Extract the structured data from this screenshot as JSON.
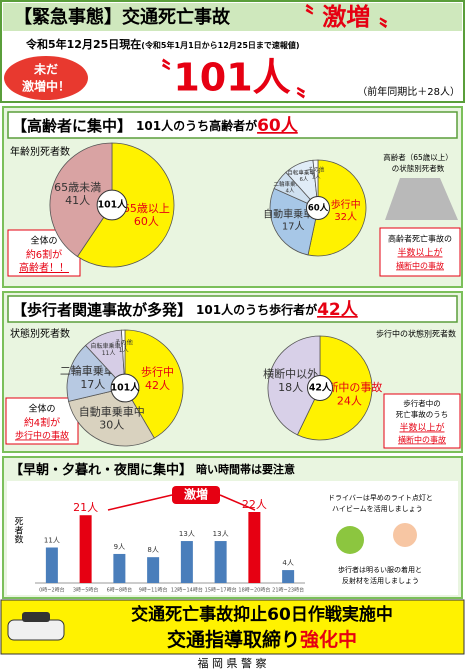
{
  "header": {
    "title": "【緊急事態】交通死亡事故",
    "title_emphasis": "〝 激増 〟",
    "date": "令和5年12月25日現在",
    "date_note": "(令和5年1月1日から12月25日まで速報値)",
    "badge": [
      "未だ",
      "激増中！"
    ],
    "quote_open": "〝",
    "total": "101人",
    "quote_close": "〟",
    "comparison": "（前年同期比＋28人）"
  },
  "section1": {
    "title": "【高齢者に集中】",
    "lead": "101人のうち高齢者が",
    "lead_number": "60人",
    "chart_label": "年齢別死者数",
    "pie": {
      "type": "pie",
      "center": "101人",
      "categories": [
        "65歳以上",
        "65歳未満"
      ],
      "values": [
        60,
        41
      ],
      "value_labels": [
        "60人",
        "41人"
      ],
      "colors": [
        "#fff200",
        "#d9a3a3"
      ]
    },
    "callout": [
      "全体の",
      "約6割が",
      "高齢者！！"
    ],
    "pie2_label": [
      "高齢者（65歳以上）",
      "の状態別死者数"
    ],
    "pie2": {
      "type": "pie",
      "center": "60人",
      "categories": [
        "歩行中",
        "自動車乗車中",
        "二輪車乗車中",
        "自転車乗車中",
        "その他"
      ],
      "values": [
        32,
        17,
        4,
        6,
        1
      ],
      "value_labels": [
        "32人",
        "17人",
        "4人",
        "6人",
        "1人"
      ],
      "colors": [
        "#fff200",
        "#a7c7e7",
        "#cfe0f0",
        "#e0ecf7",
        "#f4f7fb"
      ]
    },
    "callout2": [
      "高齢者死亡事故の",
      "半数以上が",
      "横断中の事故"
    ]
  },
  "section2": {
    "title": "【歩行者関連事故が多発】",
    "lead": "101人のうち歩行者が",
    "lead_number": "42人",
    "chart_label": "状態別死者数",
    "pie": {
      "type": "pie",
      "center": "101人",
      "categories": [
        "歩行中",
        "自動車乗車中",
        "二輪車乗車中",
        "自転車乗車中",
        "その他"
      ],
      "values": [
        42,
        30,
        17,
        11,
        1
      ],
      "value_labels": [
        "42人",
        "30人",
        "17人",
        "11人",
        "1人"
      ],
      "colors": [
        "#fff200",
        "#d9d2bf",
        "#b7c9e2",
        "#d6cde6",
        "#ffffff"
      ]
    },
    "callout": [
      "全体の",
      "約4割が",
      "歩行中の事故"
    ],
    "pie2_label": "歩行中の状態別死者数",
    "pie2": {
      "type": "pie",
      "center": "42人",
      "categories": [
        "横断中の事故",
        "横断中以外"
      ],
      "values": [
        24,
        18
      ],
      "value_labels": [
        "24人",
        "18人"
      ],
      "colors": [
        "#fff200",
        "#d8d0e8"
      ]
    },
    "callout2": [
      "歩行者中の",
      "死亡事故のうち",
      "半数以上が",
      "横断中の事故"
    ]
  },
  "section3": {
    "title": "【早朝・夕暮れ・夜間に集中】",
    "lead": "暗い時間帯は要注意",
    "chart": {
      "type": "bar",
      "y_label": "死者数",
      "annotation": "激増",
      "categories": [
        "0時~2時台",
        "3時~5時台",
        "6時~8時台",
        "9時~11時台",
        "12時~14時台",
        "15時~17時台",
        "18時~20時台",
        "21時~23時台"
      ],
      "values": [
        11,
        21,
        9,
        8,
        13,
        13,
        22,
        4
      ],
      "value_labels": [
        "11人",
        "21人",
        "9人",
        "8人",
        "13人",
        "13人",
        "22人",
        "4人"
      ],
      "colors": [
        "#4a7ebb",
        "#e60012",
        "#4a7ebb",
        "#4a7ebb",
        "#4a7ebb",
        "#4a7ebb",
        "#e60012",
        "#4a7ebb"
      ]
    },
    "driver_note": [
      "ドライバーは早めのライト点灯と",
      "ハイビームを活用しましょう"
    ],
    "pedestrian_note": [
      "歩行者は明るい服の着用と",
      "反射材を活用しましょう"
    ]
  },
  "footer": {
    "line1": "交通死亡事故抑止60日作戦実施中",
    "line2": "交通指導取締り",
    "line2_emphasis": "強化中",
    "issuer": "福 岡 県 警 察"
  }
}
